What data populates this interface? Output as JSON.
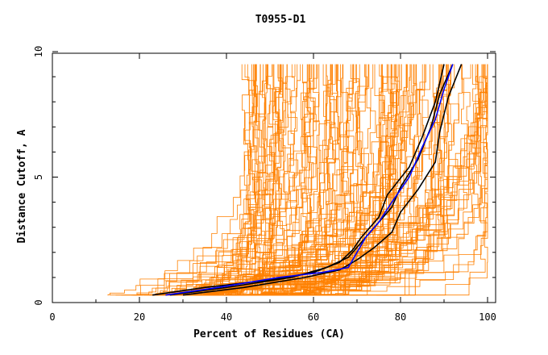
{
  "chart_data": {
    "type": "line",
    "title": "T0955-D1",
    "xlabel": "Percent of Residues (CA)",
    "ylabel": "Distance Cutoff, A",
    "xlim": [
      0,
      100
    ],
    "ylim": [
      0,
      10
    ],
    "x_ticks": [
      0,
      20,
      40,
      60,
      80,
      100
    ],
    "y_ticks": [
      0,
      5,
      10
    ],
    "grid": false,
    "legend": "none",
    "colors": {
      "models": "#ff8000",
      "highlight": "#000000",
      "best": "#0000ff"
    },
    "series": [
      {
        "color": "#000000",
        "points": [
          [
            23,
            0.3
          ],
          [
            35,
            0.6
          ],
          [
            50,
            0.9
          ],
          [
            60,
            1.2
          ],
          [
            66,
            1.6
          ],
          [
            69,
            2.1
          ],
          [
            71,
            2.6
          ],
          [
            75,
            3.4
          ],
          [
            77,
            4.3
          ],
          [
            82,
            5.4
          ],
          [
            85,
            6.6
          ],
          [
            88,
            8.0
          ],
          [
            90,
            9.5
          ]
        ]
      },
      {
        "color": "#000000",
        "points": [
          [
            27,
            0.3
          ],
          [
            40,
            0.6
          ],
          [
            55,
            1.0
          ],
          [
            63,
            1.4
          ],
          [
            68,
            1.8
          ],
          [
            71,
            2.4
          ],
          [
            74,
            3.0
          ],
          [
            78,
            3.8
          ],
          [
            80,
            4.6
          ],
          [
            84,
            5.7
          ],
          [
            87,
            7.0
          ],
          [
            89,
            8.3
          ],
          [
            92,
            9.5
          ]
        ]
      },
      {
        "color": "#000000",
        "points": [
          [
            30,
            0.3
          ],
          [
            44,
            0.6
          ],
          [
            58,
            1.0
          ],
          [
            66,
            1.3
          ],
          [
            70,
            1.7
          ],
          [
            74,
            2.2
          ],
          [
            78,
            2.8
          ],
          [
            80,
            3.6
          ],
          [
            84,
            4.5
          ],
          [
            88,
            5.6
          ],
          [
            89,
            6.8
          ],
          [
            91,
            8.2
          ],
          [
            94,
            9.5
          ]
        ]
      },
      {
        "color": "#0000ff",
        "points": [
          [
            26,
            0.3
          ],
          [
            38,
            0.6
          ],
          [
            52,
            1.0
          ],
          [
            62,
            1.2
          ],
          [
            68,
            1.4
          ],
          [
            70,
            2.0
          ],
          [
            72,
            2.6
          ],
          [
            75,
            3.2
          ],
          [
            78,
            4.0
          ],
          [
            82,
            5.0
          ],
          [
            85,
            6.2
          ],
          [
            88,
            7.3
          ],
          [
            90,
            8.5
          ],
          [
            92,
            9.5
          ]
        ]
      }
    ]
  }
}
